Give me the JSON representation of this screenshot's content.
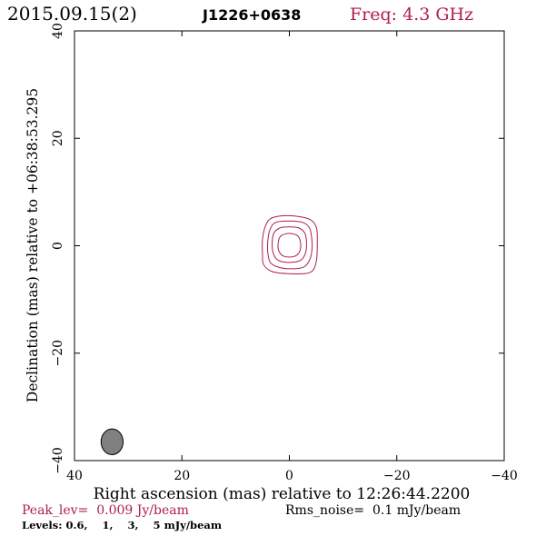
{
  "header": {
    "date": "2015.09.15(2)",
    "source": "J1226+0638",
    "freq": "Freq: 4.3 GHz"
  },
  "footer": {
    "peak": "Peak_lev=  0.009 Jy/beam",
    "rms": "Rms_noise=  0.1 mJy/beam",
    "levels": "Levels: 0.6,    1,    3,    5 mJy/beam"
  },
  "colors": {
    "contour": "#b01e4a",
    "header_red": "#b01e4a",
    "beam_fill": "#808080",
    "axis": "#000000"
  },
  "chart_data": {
    "type": "contour",
    "title": "J1226+0638",
    "xlabel": "Right ascension (mas) relative to 12:26:44.2200",
    "ylabel": "Declination (mas) relative to +06:38:53.295",
    "xlim": [
      40,
      -40
    ],
    "ylim": [
      -40,
      40
    ],
    "x_ticks": [
      40,
      20,
      0,
      -20,
      -40
    ],
    "x_tick_labels": [
      "40",
      "20",
      "0",
      "−20",
      "−40"
    ],
    "y_ticks": [
      -40,
      -20,
      0,
      20,
      40
    ],
    "y_tick_labels": [
      "−40",
      "−20",
      "0",
      "20",
      "40"
    ],
    "contour_levels_mJy": [
      0.6,
      1,
      3,
      5
    ],
    "contours": [
      {
        "level": 0.6,
        "points": [
          [
            -5.2,
            1.0
          ],
          [
            -5.0,
            3.5
          ],
          [
            -3.6,
            5.0
          ],
          [
            0,
            5.6
          ],
          [
            3.2,
            5.2
          ],
          [
            4.4,
            3.8
          ],
          [
            5.0,
            1.2
          ],
          [
            5.0,
            -1.5
          ],
          [
            4.8,
            -3.5
          ],
          [
            3.2,
            -4.8
          ],
          [
            0,
            -5.2
          ],
          [
            -3.8,
            -5.0
          ],
          [
            -5.0,
            -3.0
          ]
        ]
      },
      {
        "level": 1,
        "points": [
          [
            -4.2,
            1.0
          ],
          [
            -3.8,
            3.2
          ],
          [
            -2.6,
            4.3
          ],
          [
            0,
            4.6
          ],
          [
            2.6,
            4.3
          ],
          [
            3.6,
            3.0
          ],
          [
            4.0,
            1.0
          ],
          [
            4.0,
            -1.4
          ],
          [
            3.5,
            -3.2
          ],
          [
            2.0,
            -4.0
          ],
          [
            0,
            -4.3
          ],
          [
            -2.6,
            -4.0
          ],
          [
            -3.8,
            -2.6
          ],
          [
            -4.2,
            -0.8
          ]
        ]
      },
      {
        "level": 3,
        "points": [
          [
            -3.2,
            0.5
          ],
          [
            -2.9,
            2.3
          ],
          [
            -1.8,
            3.3
          ],
          [
            0,
            3.5
          ],
          [
            1.8,
            3.3
          ],
          [
            2.9,
            2.3
          ],
          [
            3.2,
            0.5
          ],
          [
            3.0,
            -1.4
          ],
          [
            2.1,
            -2.7
          ],
          [
            0,
            -3.1
          ],
          [
            -2.1,
            -2.7
          ],
          [
            -3.0,
            -1.4
          ]
        ]
      },
      {
        "level": 5,
        "points": [
          [
            -2.1,
            0.4
          ],
          [
            -1.6,
            1.8
          ],
          [
            0,
            2.3
          ],
          [
            1.6,
            1.8
          ],
          [
            2.1,
            0.4
          ],
          [
            1.9,
            -1.1
          ],
          [
            0.9,
            -2.0
          ],
          [
            -0.9,
            -2.0
          ],
          [
            -1.9,
            -1.1
          ]
        ]
      }
    ],
    "beam": {
      "x": 33,
      "y": -36.5,
      "major": 4.8,
      "minor": 4.1,
      "pa_deg": 0
    },
    "grid": false,
    "legend": "none"
  }
}
